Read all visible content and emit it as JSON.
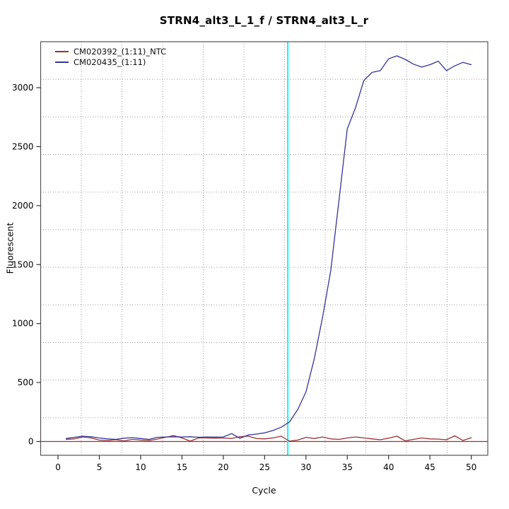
{
  "window": {
    "kind": "qpcr-amplification-plot"
  },
  "chart_data": {
    "type": "line",
    "title": "STRN4_alt3_L_1_f / STRN4_alt3_L_r",
    "xlabel": "Cycle",
    "ylabel": "Fluorescent",
    "x_ticks": [
      0,
      5,
      10,
      15,
      20,
      25,
      30,
      35,
      40,
      45,
      50
    ],
    "y_ticks": [
      0,
      500,
      1000,
      1500,
      2000,
      2500,
      3000
    ],
    "xlim": [
      -2.1,
      52.0
    ],
    "ylim": [
      -117,
      3390
    ],
    "grid": {
      "divisions": 11,
      "style": "dotted",
      "color": "#999999"
    },
    "frame_color": "#555555",
    "threshold_cycle_line": {
      "x": 27.8,
      "color": "#00ffff"
    },
    "zero_line": {
      "y": 0,
      "color": "#993333"
    },
    "legend_position": "top-left",
    "cycle_start": 1,
    "series": [
      {
        "name": "CM020392_(1:11)_NTC",
        "color": "#993333",
        "values": [
          18,
          22,
          38,
          30,
          12,
          8,
          15,
          5,
          18,
          12,
          8,
          20,
          35,
          50,
          30,
          3,
          30,
          30,
          28,
          30,
          25,
          40,
          45,
          25,
          22,
          30,
          45,
          3,
          12,
          35,
          25,
          38,
          22,
          18,
          30,
          38,
          30,
          22,
          15,
          28,
          45,
          5,
          18,
          30,
          22,
          20,
          15,
          48,
          8,
          32
        ]
      },
      {
        "name": "CM020435_(1:11)",
        "color": "#34349b",
        "values": [
          25,
          35,
          45,
          40,
          30,
          22,
          18,
          28,
          32,
          25,
          18,
          35,
          38,
          40,
          38,
          40,
          36,
          38,
          37,
          38,
          67,
          27,
          55,
          63,
          73,
          93,
          121,
          165,
          270,
          420,
          700,
          1050,
          1450,
          2050,
          2650,
          2830,
          3060,
          3130,
          3145,
          3245,
          3270,
          3240,
          3200,
          3175,
          3195,
          3225,
          3145,
          3185,
          3215,
          3195
        ]
      }
    ]
  }
}
